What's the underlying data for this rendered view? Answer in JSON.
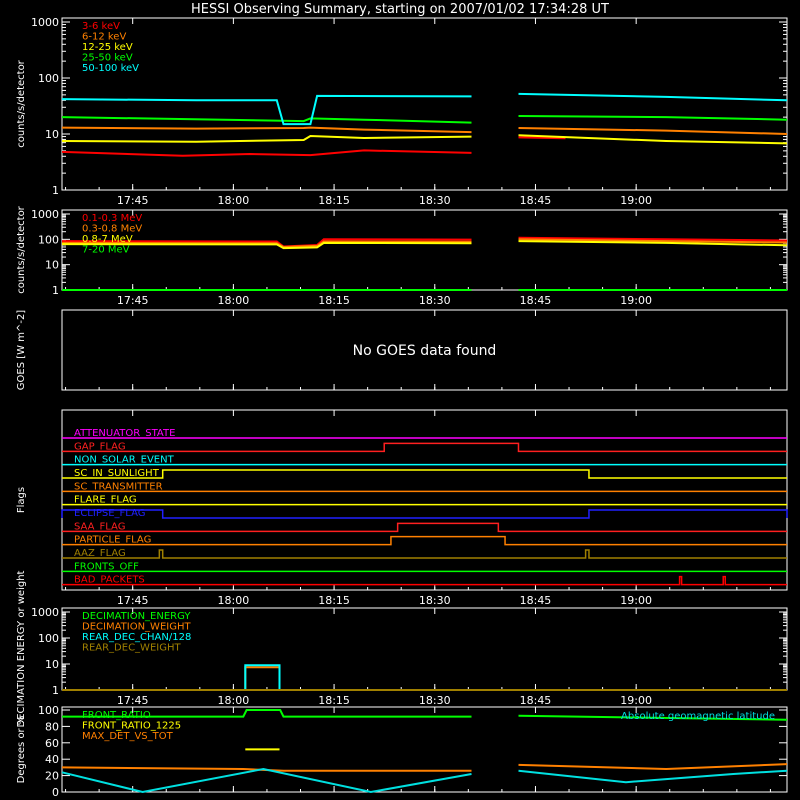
{
  "title": "HESSI Observing Summary, starting on 2007/01/02 17:34:28 UT",
  "time_ticks": [
    "17:45",
    "18:00",
    "18:15",
    "18:30",
    "18:45",
    "19:00"
  ],
  "chart_data": [
    {
      "type": "line",
      "ylabel": "counts/s/detector",
      "yscale": "log",
      "ylim": [
        1,
        1000
      ],
      "yticks": [
        "1",
        "10",
        "100",
        "1000"
      ],
      "x_range_minutes": [
        0,
        108
      ],
      "series": [
        {
          "name": "3-6 keV",
          "color": "#ff0000",
          "segments": [
            [
              [
                0,
                4.8
              ],
              [
                18,
                4.1
              ],
              [
                28,
                4.4
              ],
              [
                37,
                4.2
              ],
              [
                45,
                5.1
              ],
              [
                61,
                4.6
              ]
            ],
            [
              [
                68,
                8.7
              ],
              [
                75,
                8.4
              ]
            ]
          ]
        },
        {
          "name": "6-12 keV",
          "color": "#ff8000",
          "segments": [
            [
              [
                0,
                13
              ],
              [
                20,
                12.5
              ],
              [
                36,
                12.8
              ],
              [
                37,
                13
              ],
              [
                45,
                12
              ],
              [
                61,
                10.8
              ]
            ],
            [
              [
                68,
                12.8
              ],
              [
                90,
                11.5
              ],
              [
                108,
                10
              ]
            ]
          ]
        },
        {
          "name": "12-25 keV",
          "color": "#ffff00",
          "segments": [
            [
              [
                0,
                7.5
              ],
              [
                20,
                7.3
              ],
              [
                36,
                7.8
              ],
              [
                37,
                9.2
              ],
              [
                45,
                8.5
              ],
              [
                61,
                9
              ]
            ],
            [
              [
                68,
                9.5
              ],
              [
                90,
                7.5
              ],
              [
                108,
                6.8
              ]
            ]
          ]
        },
        {
          "name": "25-50 keV",
          "color": "#00ff00",
          "segments": [
            [
              [
                0,
                20
              ],
              [
                36,
                17
              ],
              [
                37,
                19
              ],
              [
                45,
                18
              ],
              [
                61,
                16
              ]
            ],
            [
              [
                68,
                21
              ],
              [
                90,
                20
              ],
              [
                108,
                18
              ]
            ]
          ]
        },
        {
          "name": "50-100 keV",
          "color": "#00ffff",
          "segments": [
            [
              [
                0,
                42
              ],
              [
                20,
                40
              ],
              [
                32,
                40
              ],
              [
                33,
                15
              ],
              [
                37,
                15
              ],
              [
                38,
                48
              ],
              [
                61,
                47
              ]
            ],
            [
              [
                68,
                52
              ],
              [
                90,
                46
              ],
              [
                108,
                40
              ]
            ]
          ]
        }
      ]
    },
    {
      "type": "line",
      "ylabel": "counts/s/detector",
      "yscale": "log",
      "ylim": [
        1,
        1000
      ],
      "yticks": [
        "1",
        "10",
        "100",
        "1000"
      ],
      "x_range_minutes": [
        0,
        108
      ],
      "series": [
        {
          "name": "0.1-0.3 MeV",
          "color": "#ff0000",
          "segments": [
            [
              [
                0,
                85
              ],
              [
                32,
                82
              ],
              [
                33,
                52
              ],
              [
                38,
                60
              ],
              [
                39,
                100
              ],
              [
                61,
                98
              ]
            ],
            [
              [
                68,
                115
              ],
              [
                90,
                100
              ],
              [
                108,
                90
              ]
            ]
          ]
        },
        {
          "name": "0.3-0.8 MeV",
          "color": "#ff8000",
          "segments": [
            [
              [
                0,
                72
              ],
              [
                32,
                70
              ],
              [
                33,
                50
              ],
              [
                38,
                55
              ],
              [
                39,
                82
              ],
              [
                61,
                80
              ]
            ],
            [
              [
                68,
                100
              ],
              [
                90,
                85
              ],
              [
                108,
                75
              ]
            ]
          ]
        },
        {
          "name": "0.8-7 MeV",
          "color": "#ffff00",
          "segments": [
            [
              [
                0,
                65
              ],
              [
                32,
                63
              ],
              [
                33,
                45
              ],
              [
                38,
                48
              ],
              [
                39,
                72
              ],
              [
                61,
                70
              ]
            ],
            [
              [
                68,
                85
              ],
              [
                90,
                72
              ],
              [
                108,
                58
              ]
            ]
          ]
        },
        {
          "name": "7-20 MeV",
          "color": "#00ff00",
          "segments": [
            [
              [
                0,
                1
              ],
              [
                61,
                1
              ]
            ],
            [
              [
                68,
                1
              ],
              [
                108,
                1
              ]
            ]
          ]
        }
      ]
    },
    {
      "type": "line",
      "ylabel": "GOES [W m^-2]",
      "message": "No GOES data found",
      "series": []
    },
    {
      "type": "line",
      "ylabel": "Flags",
      "x_range_minutes": [
        0,
        108
      ],
      "series": [
        {
          "name": "ATTENUATOR_STATE",
          "color": "#ff00ff",
          "high": []
        },
        {
          "name": "GAP_FLAG",
          "color": "#ff2020",
          "high": [
            [
              48,
              68
            ]
          ]
        },
        {
          "name": "NON_SOLAR_EVENT",
          "color": "#00ffff",
          "high": []
        },
        {
          "name": "SC_IN_SUNLIGHT",
          "color": "#ffff00",
          "high": [
            [
              15,
              78.5
            ]
          ]
        },
        {
          "name": "SC_TRANSMITTER",
          "color": "#ff8000",
          "high": []
        },
        {
          "name": "FLARE_FLAG",
          "color": "#ffff00",
          "high": []
        },
        {
          "name": "ECLIPSE_FLAG",
          "color": "#2020ff",
          "high": [
            [
              0,
              15
            ],
            [
              78.5,
              108
            ]
          ]
        },
        {
          "name": "SAA_FLAG",
          "color": "#ff2020",
          "high": [
            [
              50,
              65
            ]
          ]
        },
        {
          "name": "PARTICLE_FLAG",
          "color": "#ff8000",
          "high": [
            [
              49,
              66
            ]
          ]
        },
        {
          "name": "AAZ_FLAG",
          "color": "#a08000",
          "high": [
            [
              14.5,
              15
            ],
            [
              78,
              78.5
            ]
          ]
        },
        {
          "name": "FRONTS_OFF",
          "color": "#00ff00",
          "high": []
        },
        {
          "name": "BAD_PACKETS",
          "color": "#ff0000",
          "high": [
            [
              92,
              92.3
            ],
            [
              98.5,
              98.8
            ]
          ]
        }
      ]
    },
    {
      "type": "line",
      "ylabel": "DECIMATION ENERGY or weight",
      "yscale": "log",
      "ylim": [
        1,
        1000
      ],
      "yticks": [
        "1",
        "10",
        "100",
        "1000"
      ],
      "x_range_minutes": [
        0,
        108
      ],
      "series": [
        {
          "name": "DECIMATION_ENERGY",
          "color": "#00ff00",
          "segments": [
            [
              [
                0,
                1
              ],
              [
                108,
                1
              ]
            ]
          ]
        },
        {
          "name": "DECIMATION_WEIGHT",
          "color": "#ff8000",
          "segments": [
            [
              [
                0,
                1
              ],
              [
                27.3,
                1
              ],
              [
                27.3,
                7.5
              ],
              [
                32.4,
                7.5
              ],
              [
                32.4,
                1
              ],
              [
                108,
                1
              ]
            ]
          ]
        },
        {
          "name": "REAR_DEC_CHAN/128",
          "color": "#00ffff",
          "segments": [
            [
              [
                0,
                1
              ],
              [
                27.3,
                1
              ],
              [
                27.3,
                9
              ],
              [
                32.4,
                9
              ],
              [
                32.4,
                1
              ],
              [
                108,
                1
              ]
            ]
          ]
        },
        {
          "name": "REAR_DEC_WEIGHT",
          "color": "#a08000",
          "segments": [
            [
              [
                0,
                1
              ],
              [
                108,
                1
              ]
            ]
          ]
        }
      ]
    },
    {
      "type": "line",
      "ylabel": "Degrees or %",
      "ylim": [
        0,
        100
      ],
      "yticks": [
        "0",
        "20",
        "40",
        "60",
        "80",
        "100"
      ],
      "x_range_minutes": [
        0,
        108
      ],
      "annotation": "Absolute geomagnetic latitude",
      "series": [
        {
          "name": "FRONT_RATIO",
          "color": "#00ff00",
          "segments": [
            [
              [
                0,
                92
              ],
              [
                27,
                92
              ],
              [
                27.5,
                100
              ],
              [
                32.5,
                100
              ],
              [
                33,
                92
              ],
              [
                61,
                92
              ]
            ],
            [
              [
                68,
                93
              ],
              [
                108,
                88
              ]
            ]
          ]
        },
        {
          "name": "FRONT_RATIO_1225",
          "color": "#ffff00",
          "segments": [
            [
              [
                27.3,
                52
              ],
              [
                32.4,
                52
              ]
            ]
          ]
        },
        {
          "name": "MAX_DET_VS_TOT",
          "color": "#ff8000",
          "segments": [
            [
              [
                0,
                30
              ],
              [
                27,
                28
              ],
              [
                33,
                26
              ],
              [
                61,
                26
              ]
            ],
            [
              [
                68,
                33
              ],
              [
                90,
                28
              ],
              [
                108,
                34
              ]
            ]
          ]
        },
        {
          "name": "Absolute geomagnetic latitude",
          "color": "#00e0e0",
          "segments": [
            [
              [
                0,
                24
              ],
              [
                12,
                0
              ],
              [
                30,
                28
              ],
              [
                46,
                0
              ],
              [
                61,
                22
              ]
            ],
            [
              [
                68,
                26
              ],
              [
                84,
                12
              ],
              [
                100,
                22
              ],
              [
                108,
                26
              ]
            ]
          ]
        }
      ]
    }
  ]
}
